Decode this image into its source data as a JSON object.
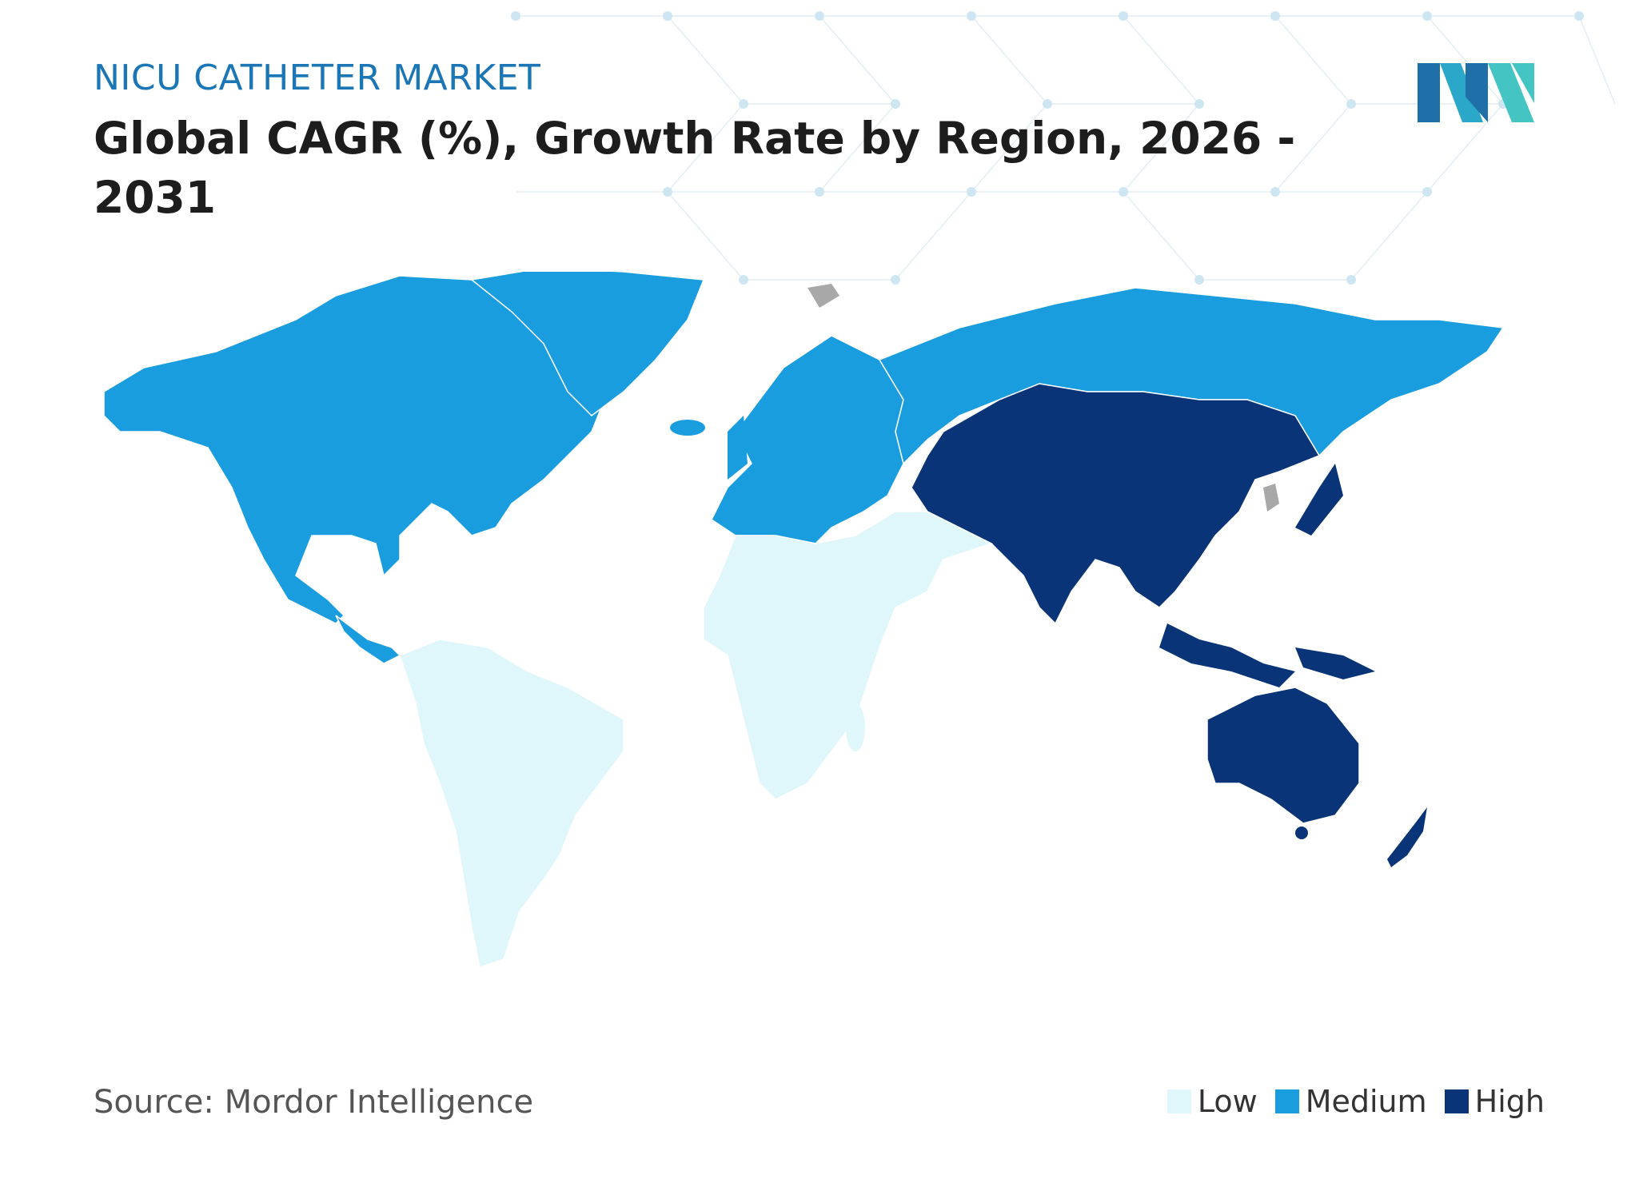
{
  "header": {
    "eyebrow": "NICU CATHETER MARKET",
    "title": "Global  CAGR (%), Growth Rate by Region, 2026 - 2031"
  },
  "footer": {
    "source": "Source: Mordor Intelligence"
  },
  "legend": [
    {
      "label": "Low",
      "color": "#dff6fb"
    },
    {
      "label": "Medium",
      "color": "#1a9ddf"
    },
    {
      "label": "High",
      "color": "#0a3478"
    }
  ],
  "regions": [
    {
      "name": "North America",
      "level": "Medium"
    },
    {
      "name": "Europe",
      "level": "Medium"
    },
    {
      "name": "Russia",
      "level": "Medium"
    },
    {
      "name": "Asia Pacific",
      "level": "High"
    },
    {
      "name": "South America",
      "level": "Low"
    },
    {
      "name": "Middle East and Africa",
      "level": "Low"
    }
  ],
  "colors": {
    "low": "#dff6fb",
    "medium": "#1a9ddf",
    "high": "#0a3478",
    "nodata": "#a8a8a8",
    "eyebrow": "#1b76b6"
  },
  "logo": {
    "icon": "mordor-logo-icon"
  }
}
